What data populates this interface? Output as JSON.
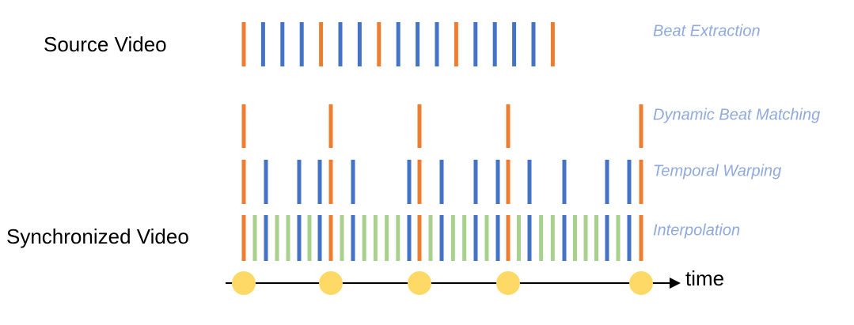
{
  "labels": {
    "source": "Source Video",
    "synchronized": "Synchronized Video",
    "time": "time"
  },
  "stages": [
    "Beat Extraction",
    "Dynamic Beat Matching",
    "Temporal Warping",
    "Interpolation"
  ]
}
